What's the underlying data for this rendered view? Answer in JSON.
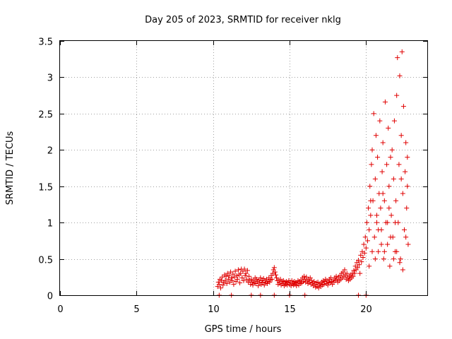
{
  "chart_data": {
    "type": "scatter",
    "title": "Day 205 of 2023, SRMTID for receiver nklg",
    "xlabel": "GPS time / hours",
    "ylabel": "SRMTID / TECUs",
    "xlim": [
      0,
      24
    ],
    "ylim": [
      0,
      3.5
    ],
    "xticks": [
      0,
      5,
      10,
      15,
      20
    ],
    "xtick_labels": [
      "0",
      "5",
      "10",
      "15",
      "20"
    ],
    "yticks": [
      0,
      0.5,
      1,
      1.5,
      2,
      2.5,
      3,
      3.5
    ],
    "ytick_labels": [
      "0",
      "0.5",
      "1",
      "1.5",
      "2",
      "2.5",
      "3",
      "3.5"
    ],
    "grid": true,
    "marker": "plus",
    "color": "#e00000",
    "series": [
      {
        "name": "SRMTID",
        "points": [
          [
            10.3,
            0.12
          ],
          [
            10.35,
            0.18
          ],
          [
            10.4,
            0.15
          ],
          [
            10.45,
            0.22
          ],
          [
            10.5,
            0.1
          ],
          [
            10.55,
            0.2
          ],
          [
            10.6,
            0.25
          ],
          [
            10.65,
            0.14
          ],
          [
            10.7,
            0.18
          ],
          [
            10.75,
            0.28
          ],
          [
            10.8,
            0.2
          ],
          [
            10.85,
            0.26
          ],
          [
            10.9,
            0.16
          ],
          [
            10.95,
            0.3
          ],
          [
            11.0,
            0.22
          ],
          [
            11.05,
            0.27
          ],
          [
            11.1,
            0.18
          ],
          [
            11.15,
            0.32
          ],
          [
            11.2,
            0.24
          ],
          [
            11.25,
            0.2
          ],
          [
            11.3,
            0.29
          ],
          [
            11.35,
            0.15
          ],
          [
            11.4,
            0.25
          ],
          [
            11.45,
            0.33
          ],
          [
            11.5,
            0.19
          ],
          [
            11.55,
            0.27
          ],
          [
            11.6,
            0.22
          ],
          [
            11.65,
            0.35
          ],
          [
            11.7,
            0.28
          ],
          [
            11.75,
            0.17
          ],
          [
            11.8,
            0.3
          ],
          [
            11.85,
            0.36
          ],
          [
            11.9,
            0.24
          ],
          [
            11.95,
            0.33
          ],
          [
            12.0,
            0.2
          ],
          [
            12.05,
            0.36
          ],
          [
            12.1,
            0.27
          ],
          [
            12.15,
            0.3
          ],
          [
            12.2,
            0.22
          ],
          [
            12.25,
            0.34
          ],
          [
            12.3,
            0.18
          ],
          [
            12.35,
            0.26
          ],
          [
            12.4,
            0.2
          ],
          [
            12.45,
            0.15
          ],
          [
            12.5,
            0.22
          ],
          [
            12.55,
            0.18
          ],
          [
            12.6,
            0.14
          ],
          [
            12.65,
            0.2
          ],
          [
            12.7,
            0.17
          ],
          [
            12.75,
            0.24
          ],
          [
            12.8,
            0.16
          ],
          [
            12.85,
            0.22
          ],
          [
            12.9,
            0.19
          ],
          [
            12.95,
            0.13
          ],
          [
            13.0,
            0.21
          ],
          [
            13.05,
            0.17
          ],
          [
            13.1,
            0.24
          ],
          [
            13.15,
            0.15
          ],
          [
            13.2,
            0.2
          ],
          [
            13.25,
            0.18
          ],
          [
            13.3,
            0.23
          ],
          [
            13.35,
            0.14
          ],
          [
            13.4,
            0.2
          ],
          [
            13.45,
            0.17
          ],
          [
            13.5,
            0.22
          ],
          [
            13.55,
            0.16
          ],
          [
            13.6,
            0.19
          ],
          [
            13.65,
            0.24
          ],
          [
            13.7,
            0.18
          ],
          [
            13.75,
            0.21
          ],
          [
            13.8,
            0.27
          ],
          [
            13.85,
            0.22
          ],
          [
            13.9,
            0.3
          ],
          [
            13.95,
            0.35
          ],
          [
            14.0,
            0.38
          ],
          [
            14.05,
            0.32
          ],
          [
            14.1,
            0.28
          ],
          [
            14.15,
            0.24
          ],
          [
            14.2,
            0.2
          ],
          [
            14.25,
            0.15
          ],
          [
            14.3,
            0.2
          ],
          [
            14.35,
            0.17
          ],
          [
            14.4,
            0.22
          ],
          [
            14.45,
            0.14
          ],
          [
            14.5,
            0.19
          ],
          [
            14.55,
            0.16
          ],
          [
            14.6,
            0.2
          ],
          [
            14.65,
            0.13
          ],
          [
            14.7,
            0.18
          ],
          [
            14.75,
            0.15
          ],
          [
            14.8,
            0.19
          ],
          [
            14.85,
            0.14
          ],
          [
            14.9,
            0.17
          ],
          [
            14.95,
            0.2
          ],
          [
            15.0,
            0.15
          ],
          [
            15.05,
            0.18
          ],
          [
            15.1,
            0.13
          ],
          [
            15.15,
            0.2
          ],
          [
            15.2,
            0.16
          ],
          [
            15.25,
            0.14
          ],
          [
            15.3,
            0.19
          ],
          [
            15.35,
            0.15
          ],
          [
            15.4,
            0.18
          ],
          [
            15.45,
            0.13
          ],
          [
            15.5,
            0.17
          ],
          [
            15.55,
            0.2
          ],
          [
            15.6,
            0.14
          ],
          [
            15.65,
            0.19
          ],
          [
            15.7,
            0.16
          ],
          [
            15.75,
            0.21
          ],
          [
            15.8,
            0.17
          ],
          [
            15.85,
            0.24
          ],
          [
            15.9,
            0.19
          ],
          [
            15.95,
            0.26
          ],
          [
            16.0,
            0.22
          ],
          [
            16.05,
            0.18
          ],
          [
            16.1,
            0.25
          ],
          [
            16.15,
            0.2
          ],
          [
            16.2,
            0.16
          ],
          [
            16.25,
            0.22
          ],
          [
            16.3,
            0.18
          ],
          [
            16.35,
            0.24
          ],
          [
            16.4,
            0.15
          ],
          [
            16.45,
            0.2
          ],
          [
            16.5,
            0.17
          ],
          [
            16.55,
            0.13
          ],
          [
            16.6,
            0.19
          ],
          [
            16.65,
            0.15
          ],
          [
            16.7,
            0.11
          ],
          [
            16.75,
            0.17
          ],
          [
            16.8,
            0.12
          ],
          [
            16.85,
            0.18
          ],
          [
            16.9,
            0.1
          ],
          [
            16.95,
            0.14
          ],
          [
            17.0,
            0.16
          ],
          [
            17.05,
            0.12
          ],
          [
            17.1,
            0.18
          ],
          [
            17.15,
            0.14
          ],
          [
            17.2,
            0.2
          ],
          [
            17.25,
            0.15
          ],
          [
            17.3,
            0.19
          ],
          [
            17.35,
            0.22
          ],
          [
            17.4,
            0.16
          ],
          [
            17.45,
            0.2
          ],
          [
            17.5,
            0.14
          ],
          [
            17.55,
            0.18
          ],
          [
            17.6,
            0.22
          ],
          [
            17.65,
            0.17
          ],
          [
            17.7,
            0.24
          ],
          [
            17.75,
            0.19
          ],
          [
            17.8,
            0.15
          ],
          [
            17.85,
            0.21
          ],
          [
            17.9,
            0.18
          ],
          [
            17.95,
            0.24
          ],
          [
            18.0,
            0.2
          ],
          [
            18.05,
            0.26
          ],
          [
            18.1,
            0.22
          ],
          [
            18.15,
            0.18
          ],
          [
            18.2,
            0.25
          ],
          [
            18.25,
            0.2
          ],
          [
            18.3,
            0.27
          ],
          [
            18.35,
            0.22
          ],
          [
            18.4,
            0.3
          ],
          [
            18.45,
            0.24
          ],
          [
            18.5,
            0.32
          ],
          [
            18.55,
            0.26
          ],
          [
            18.6,
            0.35
          ],
          [
            18.65,
            0.28
          ],
          [
            18.7,
            0.22
          ],
          [
            18.75,
            0.3
          ],
          [
            18.8,
            0.24
          ],
          [
            18.85,
            0.2
          ],
          [
            18.9,
            0.26
          ],
          [
            18.95,
            0.22
          ],
          [
            19.0,
            0.28
          ],
          [
            19.05,
            0.24
          ],
          [
            19.1,
            0.3
          ],
          [
            19.15,
            0.26
          ],
          [
            19.2,
            0.34
          ],
          [
            19.25,
            0.3
          ],
          [
            19.3,
            0.4
          ],
          [
            19.35,
            0.35
          ],
          [
            19.4,
            0.45
          ],
          [
            19.45,
            0.38
          ],
          [
            19.5,
            0.48
          ],
          [
            19.55,
            0.42
          ],
          [
            19.6,
            0.3
          ],
          [
            19.65,
            0.55
          ],
          [
            19.7,
            0.46
          ],
          [
            19.75,
            0.6
          ],
          [
            19.8,
            0.52
          ],
          [
            19.85,
            0.7
          ],
          [
            19.9,
            0.58
          ],
          [
            19.95,
            0.8
          ],
          [
            20.0,
            0.65
          ],
          [
            20.05,
            1.0
          ],
          [
            20.1,
            0.75
          ],
          [
            20.15,
            1.2
          ],
          [
            20.2,
            0.9
          ],
          [
            20.25,
            1.5
          ],
          [
            20.3,
            1.1
          ],
          [
            20.35,
            1.8
          ],
          [
            20.4,
            2.0
          ],
          [
            20.45,
            1.3
          ],
          [
            20.5,
            2.5
          ],
          [
            20.55,
            0.8
          ],
          [
            20.6,
            1.6
          ],
          [
            20.65,
            2.2
          ],
          [
            20.7,
            1.0
          ],
          [
            20.75,
            1.9
          ],
          [
            20.8,
            0.6
          ],
          [
            20.85,
            1.4
          ],
          [
            20.9,
            2.4
          ],
          [
            20.95,
            1.2
          ],
          [
            21.0,
            0.9
          ],
          [
            21.05,
            1.7
          ],
          [
            21.1,
            2.1
          ],
          [
            21.15,
            0.5
          ],
          [
            21.2,
            1.3
          ],
          [
            21.25,
            2.66
          ],
          [
            21.3,
            1.0
          ],
          [
            21.35,
            1.8
          ],
          [
            21.4,
            0.7
          ],
          [
            21.45,
            2.3
          ],
          [
            21.5,
            1.5
          ],
          [
            21.55,
            0.4
          ],
          [
            21.6,
            1.9
          ],
          [
            21.65,
            1.1
          ],
          [
            21.7,
            2.0
          ],
          [
            21.75,
            0.8
          ],
          [
            21.8,
            1.6
          ],
          [
            21.85,
            2.4
          ],
          [
            21.9,
            0.6
          ],
          [
            21.95,
            1.3
          ],
          [
            22.0,
            2.75
          ],
          [
            22.05,
            3.27
          ],
          [
            22.1,
            1.0
          ],
          [
            22.15,
            1.8
          ],
          [
            22.2,
            3.02
          ],
          [
            22.25,
            0.5
          ],
          [
            22.3,
            2.2
          ],
          [
            22.35,
            3.35
          ],
          [
            22.4,
            1.4
          ],
          [
            22.45,
            2.6
          ],
          [
            22.5,
            0.9
          ],
          [
            22.55,
            1.7
          ],
          [
            22.6,
            2.1
          ],
          [
            22.65,
            1.2
          ],
          [
            22.7,
            1.5
          ],
          [
            22.75,
            0.7
          ],
          [
            20.2,
            0.4
          ],
          [
            20.4,
            0.6
          ],
          [
            20.6,
            0.5
          ],
          [
            20.8,
            0.9
          ],
          [
            21.0,
            0.7
          ],
          [
            21.2,
            0.6
          ],
          [
            21.4,
            1.0
          ],
          [
            21.6,
            0.8
          ],
          [
            21.8,
            0.5
          ],
          [
            22.0,
            0.6
          ],
          [
            22.2,
            0.45
          ],
          [
            22.4,
            0.35
          ],
          [
            22.6,
            0.8
          ],
          [
            20.3,
            1.3
          ],
          [
            20.7,
            1.1
          ],
          [
            21.1,
            1.4
          ],
          [
            21.5,
            1.2
          ],
          [
            21.9,
            1.0
          ],
          [
            22.3,
            1.6
          ],
          [
            22.7,
            1.9
          ],
          [
            10.4,
            0
          ],
          [
            11.2,
            0
          ],
          [
            12.5,
            0
          ],
          [
            13.1,
            0
          ],
          [
            14.0,
            0
          ],
          [
            15.0,
            0
          ],
          [
            16.0,
            0
          ],
          [
            19.5,
            0
          ],
          [
            20.0,
            0
          ]
        ]
      }
    ]
  }
}
